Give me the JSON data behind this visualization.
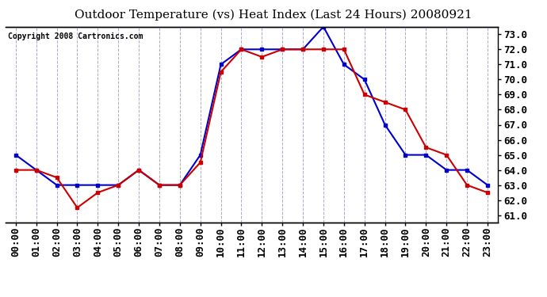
{
  "title": "Outdoor Temperature (vs) Heat Index (Last 24 Hours) 20080921",
  "copyright": "Copyright 2008 Cartronics.com",
  "x_labels": [
    "00:00",
    "01:00",
    "02:00",
    "03:00",
    "04:00",
    "05:00",
    "06:00",
    "07:00",
    "08:00",
    "09:00",
    "10:00",
    "11:00",
    "12:00",
    "13:00",
    "14:00",
    "15:00",
    "16:00",
    "17:00",
    "18:00",
    "19:00",
    "20:00",
    "21:00",
    "22:00",
    "23:00"
  ],
  "temp_blue": [
    65.0,
    64.0,
    63.0,
    63.0,
    63.0,
    63.0,
    64.0,
    63.0,
    63.0,
    65.0,
    71.0,
    72.0,
    72.0,
    72.0,
    72.0,
    73.5,
    71.0,
    70.0,
    67.0,
    65.0,
    65.0,
    64.0,
    64.0,
    63.0
  ],
  "temp_red": [
    64.0,
    64.0,
    63.5,
    61.5,
    62.5,
    63.0,
    64.0,
    63.0,
    63.0,
    64.5,
    70.5,
    72.0,
    71.5,
    72.0,
    72.0,
    72.0,
    72.0,
    69.0,
    68.5,
    68.0,
    65.5,
    65.0,
    63.0,
    62.5
  ],
  "ylim_min": 61.0,
  "ylim_max": 73.0,
  "yticks": [
    61.0,
    62.0,
    63.0,
    64.0,
    65.0,
    66.0,
    67.0,
    68.0,
    69.0,
    70.0,
    71.0,
    72.0,
    73.0
  ],
  "blue_color": "#0000cc",
  "red_color": "#cc0000",
  "bg_color": "#ffffff",
  "plot_bg_color": "#ffffff",
  "grid_color": "#aaaacc",
  "title_fontsize": 11,
  "tick_fontsize": 9,
  "copyright_fontsize": 7
}
